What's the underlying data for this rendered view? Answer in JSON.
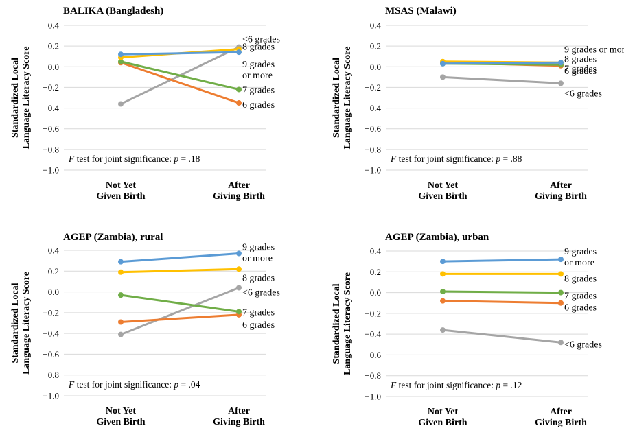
{
  "figure": {
    "y_axis_label_line1": "Standardized Local",
    "y_axis_label_line2": "Language Literacy Score"
  },
  "series_colors": {
    "<6 grades": "#a5a5a5",
    "6 grades": "#ed7d31",
    "7 grades": "#70ad47",
    "8 grades": "#ffc000",
    "9 grades or more": "#5b9bd5"
  },
  "chart_data": [
    {
      "type": "line",
      "title": "BALIKA (Bangladesh)",
      "x": [
        "Not Yet Given Birth",
        "After Giving Birth"
      ],
      "x_tick_lines": [
        [
          "Not Yet",
          "Given Birth"
        ],
        [
          "After",
          "Giving Birth"
        ]
      ],
      "ylim": [
        -1.0,
        0.4
      ],
      "yticks": [
        "0.4",
        "0.2",
        "0.0",
        "−0.2",
        "−0.4",
        "−0.6",
        "−0.8",
        "−1.0"
      ],
      "grid": true,
      "f_test": {
        "prefix": "F",
        "text": " test for joint significance: ",
        "p": "p",
        "value": " = .18"
      },
      "series": [
        {
          "name": "<6 grades",
          "values": [
            -0.36,
            0.19
          ],
          "label_lines": [
            "<6 grades"
          ]
        },
        {
          "name": "6 grades",
          "values": [
            0.04,
            -0.35
          ],
          "label_lines": [
            "6 grades"
          ]
        },
        {
          "name": "7 grades",
          "values": [
            0.05,
            -0.22
          ],
          "label_lines": [
            "7 grades"
          ]
        },
        {
          "name": "8 grades",
          "values": [
            0.09,
            0.17
          ],
          "label_lines": [
            "8 grades"
          ]
        },
        {
          "name": "9 grades or more",
          "values": [
            0.12,
            0.14
          ],
          "label_lines": [
            "9 grades",
            "or more"
          ]
        }
      ]
    },
    {
      "type": "line",
      "title": "MSAS (Malawi)",
      "x": [
        "Not Yet Given Birth",
        "After Giving Birth"
      ],
      "x_tick_lines": [
        [
          "Not Yet",
          "Given Birth"
        ],
        [
          "After",
          "Giving Birth"
        ]
      ],
      "ylim": [
        -1.0,
        0.4
      ],
      "yticks": [
        "0.4",
        "0.2",
        "0.0",
        "−0.2",
        "−0.4",
        "−0.6",
        "−0.8",
        "−1.0"
      ],
      "grid": true,
      "f_test": {
        "prefix": "F",
        "text": " test for joint significance: ",
        "p": "p",
        "value": " = .88"
      },
      "series": [
        {
          "name": "<6 grades",
          "values": [
            -0.1,
            -0.16
          ],
          "label_lines": [
            "<6 grades"
          ]
        },
        {
          "name": "6 grades",
          "values": [
            0.04,
            0.01
          ],
          "label_lines": [
            "6 grades"
          ]
        },
        {
          "name": "7 grades",
          "values": [
            0.03,
            0.02
          ],
          "label_lines": [
            "7 grades"
          ]
        },
        {
          "name": "8 grades",
          "values": [
            0.05,
            0.04
          ],
          "label_lines": [
            "8 grades"
          ]
        },
        {
          "name": "9 grades or more",
          "values": [
            0.03,
            0.04
          ],
          "label_lines": [
            "9 grades or more"
          ]
        }
      ]
    },
    {
      "type": "line",
      "title": "AGEP (Zambia), rural",
      "x": [
        "Not Yet Given Birth",
        "After Giving Birth"
      ],
      "x_tick_lines": [
        [
          "Not Yet",
          "Given Birth"
        ],
        [
          "After",
          "Giving Birth"
        ]
      ],
      "ylim": [
        -1.0,
        0.4
      ],
      "yticks": [
        "0.4",
        "0.2",
        "0.0",
        "−0.2",
        "−0.4",
        "−0.6",
        "−0.8",
        "−1.0"
      ],
      "grid": true,
      "f_test": {
        "prefix": "F",
        "text": " test for joint significance: ",
        "p": "p",
        "value": " = .04"
      },
      "series": [
        {
          "name": "<6 grades",
          "values": [
            -0.41,
            0.04
          ],
          "label_lines": [
            "<6 grades"
          ]
        },
        {
          "name": "6 grades",
          "values": [
            -0.29,
            -0.22
          ],
          "label_lines": [
            "6 grades"
          ]
        },
        {
          "name": "7 grades",
          "values": [
            -0.03,
            -0.19
          ],
          "label_lines": [
            "7 grades"
          ]
        },
        {
          "name": "8 grades",
          "values": [
            0.19,
            0.22
          ],
          "label_lines": [
            "8 grades"
          ]
        },
        {
          "name": "9 grades or more",
          "values": [
            0.29,
            0.37
          ],
          "label_lines": [
            "9 grades",
            "or more"
          ]
        }
      ]
    },
    {
      "type": "line",
      "title": "AGEP (Zambia), urban",
      "x": [
        "Not Yet Given Birth",
        "After Giving Birth"
      ],
      "x_tick_lines": [
        [
          "Not Yet",
          "Given Birth"
        ],
        [
          "After",
          "Giving Birth"
        ]
      ],
      "ylim": [
        -1.0,
        0.4
      ],
      "yticks": [
        "0.4",
        "0.2",
        "0.0",
        "−0.2",
        "−0.4",
        "−0.6",
        "−0.8",
        "−1.0"
      ],
      "grid": true,
      "f_test": {
        "prefix": "F",
        "text": " test for joint significance: ",
        "p": "p",
        "value": " = .12"
      },
      "series": [
        {
          "name": "<6 grades",
          "values": [
            -0.36,
            -0.48
          ],
          "label_lines": [
            "<6 grades"
          ]
        },
        {
          "name": "6 grades",
          "values": [
            -0.08,
            -0.1
          ],
          "label_lines": [
            "6 grades"
          ]
        },
        {
          "name": "7 grades",
          "values": [
            0.01,
            0.0
          ],
          "label_lines": [
            "7 grades"
          ]
        },
        {
          "name": "8 grades",
          "values": [
            0.18,
            0.18
          ],
          "label_lines": [
            "8 grades"
          ]
        },
        {
          "name": "9 grades or more",
          "values": [
            0.3,
            0.32
          ],
          "label_lines": [
            "9 grades",
            "or more"
          ]
        }
      ]
    }
  ]
}
